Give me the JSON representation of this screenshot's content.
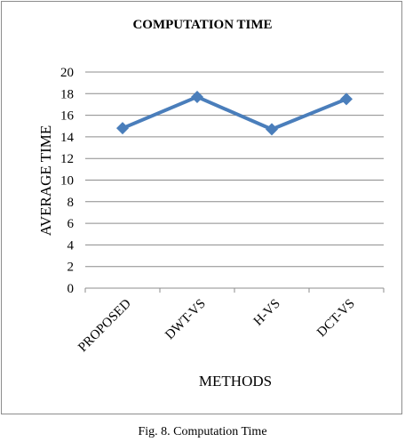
{
  "chart_data": {
    "type": "line",
    "title": "COMPUTATION TIME",
    "xlabel": "METHODS",
    "ylabel": "AVERAGE TIME",
    "categories": [
      "PROPOSED",
      "DWT-VS",
      "H-VS",
      "DCT-VS"
    ],
    "series": [
      {
        "values": [
          14.8,
          17.7,
          14.7,
          17.5
        ]
      }
    ],
    "ylim": [
      0,
      20
    ],
    "yticks": [
      "0",
      "2",
      "4",
      "6",
      "8",
      "10",
      "12",
      "14",
      "16",
      "18",
      "20"
    ],
    "grid": true,
    "legend": "none",
    "line_color": "#4a7ebb",
    "grid_color": "#8c8c8c"
  },
  "caption": "Fig. 8. Computation Time"
}
